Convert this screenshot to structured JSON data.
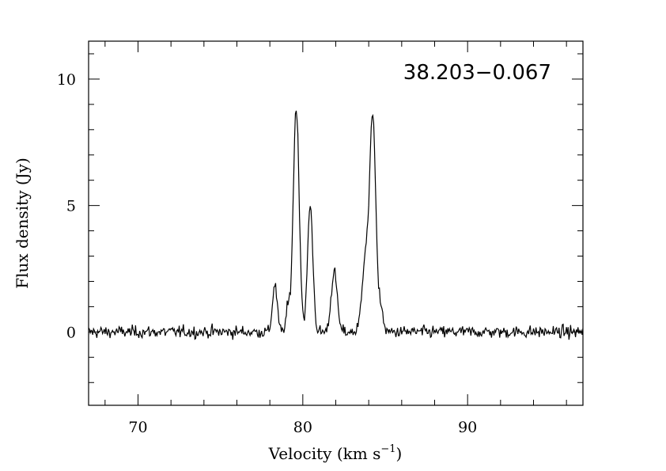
{
  "chart_data": {
    "type": "line",
    "title": "",
    "annotation": "38.203−0.067",
    "xlabel": "Velocity (km s",
    "xlabel_sup": "−1",
    "xlabel_end": ")",
    "ylabel": "Flux density (Jy)",
    "xlim": [
      67,
      97
    ],
    "ylim": [
      -2.9,
      11.5
    ],
    "x_ticks": [
      70,
      80,
      90
    ],
    "x_tick_labels": [
      "70",
      "80",
      "90"
    ],
    "y_ticks": [
      0,
      5,
      10
    ],
    "y_tick_labels": [
      "0",
      "5",
      "10"
    ],
    "grid": false,
    "series": [
      {
        "profile_noise_rms": 0.12,
        "baseline": 0.0,
        "components": [
          {
            "center": 78.3,
            "peak": 1.9,
            "width": 0.14
          },
          {
            "center": 79.1,
            "peak": 0.9,
            "width": 0.12
          },
          {
            "center": 79.6,
            "peak": 8.9,
            "width": 0.18
          },
          {
            "center": 80.45,
            "peak": 5.0,
            "width": 0.16
          },
          {
            "center": 81.9,
            "peak": 2.4,
            "width": 0.18
          },
          {
            "center": 83.8,
            "peak": 3.0,
            "width": 0.2
          },
          {
            "center": 84.25,
            "peak": 8.5,
            "width": 0.18
          },
          {
            "center": 84.75,
            "peak": 1.0,
            "width": 0.12
          }
        ]
      }
    ]
  }
}
